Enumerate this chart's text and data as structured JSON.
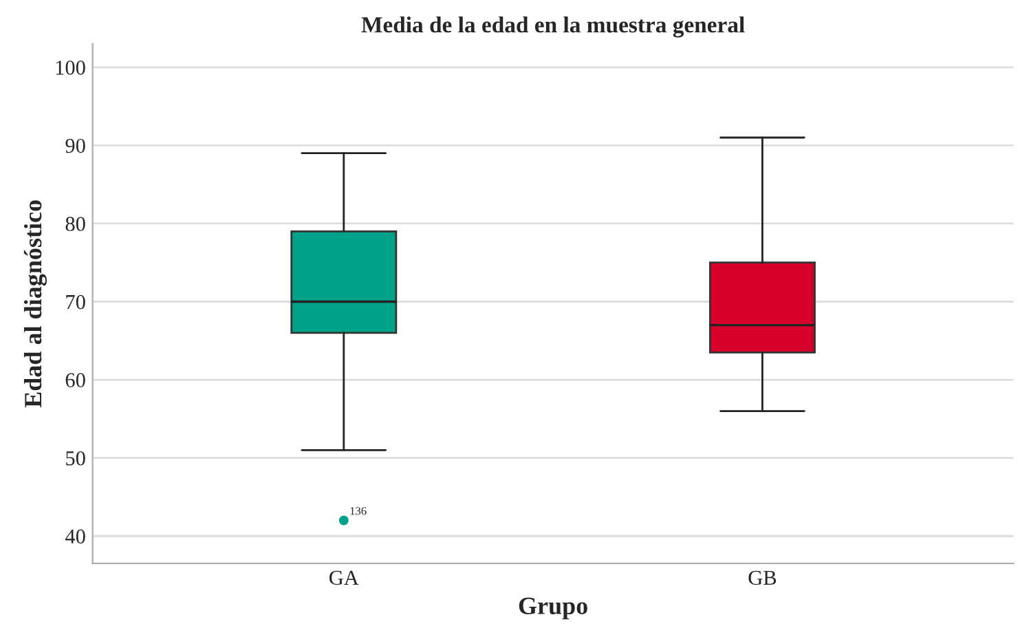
{
  "chart_data": {
    "type": "box",
    "title": "Media de la edad en la muestra general",
    "xlabel": "Grupo",
    "ylabel": "Edad al diagnóstico",
    "categories": [
      "GA",
      "GB"
    ],
    "colors": [
      "#00a38a",
      "#d7002c"
    ],
    "boxes": [
      {
        "low": 51,
        "q1": 66,
        "median": 70,
        "q3": 79,
        "high": 89,
        "outliers": [
          42
        ]
      },
      {
        "low": 56,
        "q1": 63.5,
        "median": 67,
        "q3": 75,
        "high": 91
      }
    ],
    "annotations": [
      "136"
    ],
    "ylim": [
      36.5,
      103
    ],
    "yticks": [
      40,
      50,
      60,
      70,
      80,
      90,
      100
    ],
    "grid": "y"
  }
}
